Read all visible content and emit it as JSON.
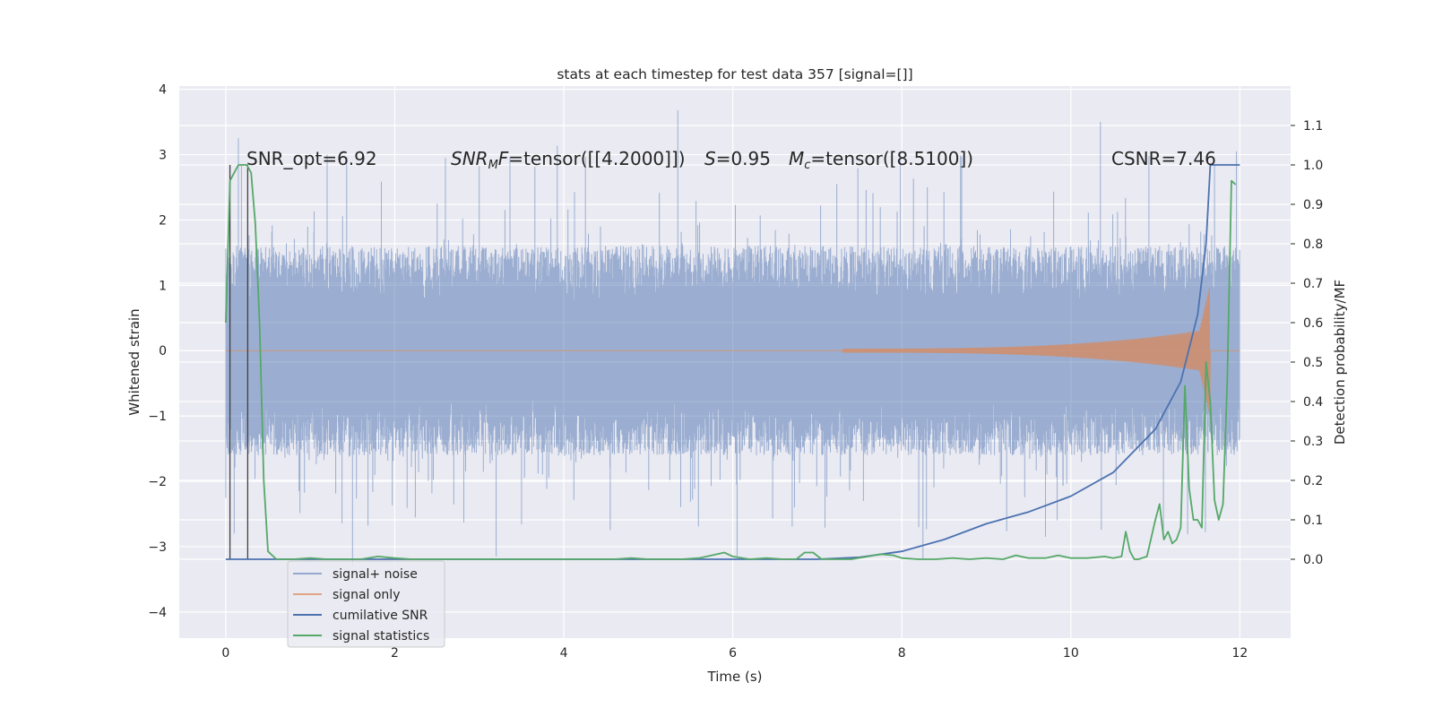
{
  "chart_data": {
    "type": "line",
    "title": "stats at each timestep for test data 357 [signal=[]]",
    "xlabel": "Time (s)",
    "ylabel": "Whitened strain",
    "y2label": "Detection probability/MF",
    "xlim": [
      -0.55,
      12.6
    ],
    "ylim": [
      -4.4,
      4.05
    ],
    "y2lim": [
      -0.2,
      1.2
    ],
    "xticks": [
      0,
      2,
      4,
      6,
      8,
      10,
      12
    ],
    "yticks": [
      -4,
      -3,
      -2,
      -1,
      0,
      1,
      2,
      3,
      4
    ],
    "y2ticks": [
      0.0,
      0.1,
      0.2,
      0.3,
      0.4,
      0.5,
      0.6,
      0.7,
      0.8,
      0.9,
      1.0,
      1.1
    ],
    "grid": true,
    "legend_position": "lower-left",
    "annotations": {
      "snr_opt": "SNR_opt=6.92",
      "snr_mf": "tensor([[4.2000]])",
      "s_value": "=0.95",
      "mc": "=tensor([8.5100])",
      "csnr": "CSNR=7.46"
    },
    "colors": {
      "background": "#eaeaf2",
      "grid": "#ffffff",
      "signal_noise": "#4c72b0",
      "signal_only": "#dd8452",
      "cumulative_snr": "#4c72b0",
      "signal_statistics": "#55a868",
      "vline": "#404040"
    },
    "vertical_lines": [
      0.05,
      0.26
    ],
    "series": [
      {
        "name": "signal+ noise",
        "axis": "left",
        "style": "noise band",
        "x_range": [
          0,
          12
        ],
        "envelope_abs": 1.6,
        "peak_max": 3.68,
        "peak_min": -3.3,
        "peaks": [
          [
            0.15,
            3.25
          ],
          [
            1.2,
            3.0
          ],
          [
            2.6,
            2.95
          ],
          [
            5.35,
            3.68
          ],
          [
            10.35,
            3.5
          ],
          [
            11.7,
            2.85
          ],
          [
            0.1,
            -2.8
          ],
          [
            1.5,
            -3.3
          ],
          [
            3.2,
            -3.15
          ],
          [
            6.05,
            -3.15
          ],
          [
            8.25,
            -3.2
          ],
          [
            9.7,
            -2.85
          ]
        ]
      },
      {
        "name": "signal only",
        "axis": "left",
        "style": "chirp",
        "x_range": [
          0,
          12
        ],
        "chirp_onset": 7.3,
        "merger_time": 11.65,
        "peak_amplitude": 1.0
      },
      {
        "name": "cumilative SNR",
        "axis": "right",
        "x": [
          0,
          7.0,
          7.5,
          8.0,
          8.5,
          9.0,
          9.5,
          10.0,
          10.5,
          11.0,
          11.3,
          11.5,
          11.6,
          11.65,
          12.0
        ],
        "y": [
          0.0,
          0.0,
          0.005,
          0.02,
          0.05,
          0.09,
          0.12,
          0.16,
          0.22,
          0.33,
          0.45,
          0.62,
          0.8,
          1.0,
          1.0
        ]
      },
      {
        "name": "signal statistics",
        "axis": "right",
        "x": [
          0,
          0.05,
          0.1,
          0.15,
          0.25,
          0.3,
          0.35,
          0.4,
          0.45,
          0.5,
          0.6,
          0.8,
          1.0,
          1.2,
          1.4,
          1.6,
          1.8,
          2.0,
          2.2,
          2.4,
          2.6,
          2.8,
          3.0,
          3.2,
          3.4,
          3.6,
          3.8,
          4.0,
          4.2,
          4.4,
          4.6,
          4.8,
          5.0,
          5.2,
          5.4,
          5.6,
          5.75,
          5.9,
          6.0,
          6.2,
          6.4,
          6.6,
          6.75,
          6.85,
          6.95,
          7.05,
          7.2,
          7.4,
          7.6,
          7.75,
          7.9,
          8.0,
          8.2,
          8.4,
          8.6,
          8.8,
          9.0,
          9.2,
          9.35,
          9.5,
          9.7,
          9.85,
          10.0,
          10.2,
          10.4,
          10.5,
          10.6,
          10.65,
          10.7,
          10.75,
          10.8,
          10.9,
          11.0,
          11.05,
          11.1,
          11.15,
          11.2,
          11.25,
          11.3,
          11.35,
          11.4,
          11.45,
          11.5,
          11.55,
          11.6,
          11.65,
          11.7,
          11.75,
          11.8,
          11.85,
          11.9,
          11.95
        ],
        "y": [
          0.6,
          0.96,
          0.98,
          1.0,
          1.0,
          0.98,
          0.85,
          0.6,
          0.2,
          0.02,
          0.0,
          0.0,
          0.003,
          0.0,
          0.0,
          0.0,
          0.007,
          0.003,
          0.0,
          0.0,
          0.0,
          0.0,
          0.0,
          0.0,
          0.0,
          0.0,
          0.0,
          0.0,
          0.0,
          0.0,
          0.0,
          0.003,
          0.0,
          0.0,
          0.0,
          0.003,
          0.01,
          0.017,
          0.007,
          0.0,
          0.003,
          0.0,
          0.0,
          0.017,
          0.017,
          0.0,
          0.0,
          0.0,
          0.007,
          0.013,
          0.01,
          0.003,
          0.0,
          0.0,
          0.003,
          0.0,
          0.003,
          0.0,
          0.01,
          0.003,
          0.003,
          0.01,
          0.003,
          0.003,
          0.007,
          0.003,
          0.007,
          0.07,
          0.02,
          0.0,
          0.0,
          0.007,
          0.1,
          0.14,
          0.05,
          0.07,
          0.04,
          0.05,
          0.08,
          0.44,
          0.18,
          0.1,
          0.1,
          0.08,
          0.5,
          0.4,
          0.15,
          0.1,
          0.14,
          0.45,
          0.96,
          0.95
        ]
      }
    ]
  }
}
